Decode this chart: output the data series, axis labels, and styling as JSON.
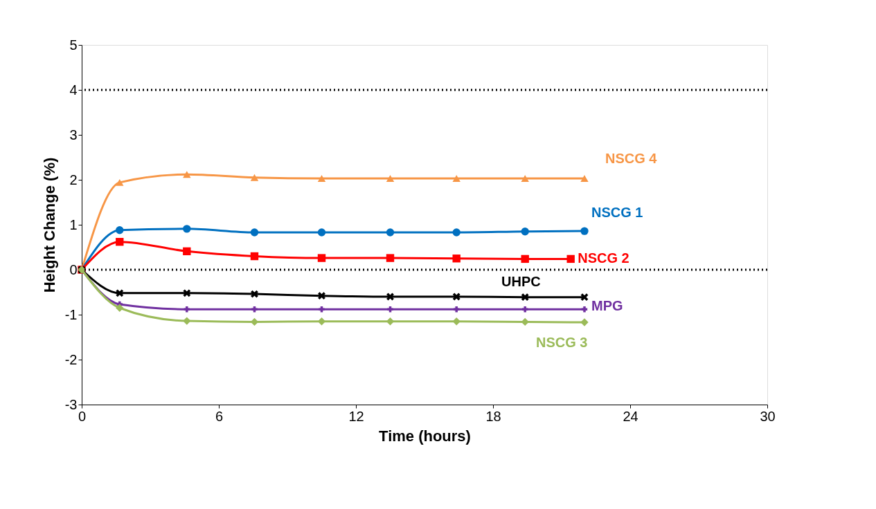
{
  "chart_data": {
    "type": "line",
    "xlabel": "Time (hours)",
    "ylabel": "Height Change (%)",
    "x": [
      0,
      1.66,
      4.6,
      7.56,
      10.5,
      13.5,
      16.4,
      19.4,
      22.0
    ],
    "xlim": [
      0,
      30
    ],
    "xticks": [
      0,
      6,
      12,
      18,
      24,
      30
    ],
    "ylim": [
      -3,
      5
    ],
    "yticks": [
      -3,
      -2,
      -1,
      0,
      1,
      2,
      3,
      4,
      5
    ],
    "grid": false,
    "line_style": "solid",
    "ref_lines": [
      {
        "axis": "y",
        "value": 4,
        "line_style": "dotted",
        "color": "#000000"
      },
      {
        "axis": "y",
        "value": 0,
        "line_style": "dotted",
        "color": "#000000"
      }
    ],
    "series": [
      {
        "name": "NSCG 4",
        "color": "#f79646",
        "marker": "triangle",
        "values": [
          0,
          1.94,
          2.12,
          2.05,
          2.03,
          2.03,
          2.03,
          2.03,
          2.03
        ]
      },
      {
        "name": "NSCG 1",
        "color": "#0070c0",
        "marker": "circle",
        "values": [
          0,
          0.88,
          0.91,
          0.83,
          0.83,
          0.83,
          0.83,
          0.85,
          0.86
        ]
      },
      {
        "name": "NSCG 2",
        "color": "#ff0000",
        "marker": "square",
        "x": [
          0,
          1.66,
          4.6,
          7.56,
          10.5,
          13.5,
          16.4,
          19.4,
          21.4
        ],
        "values": [
          0,
          0.62,
          0.41,
          0.3,
          0.26,
          0.26,
          0.25,
          0.24,
          0.24
        ]
      },
      {
        "name": "UHPC",
        "color": "#000000",
        "marker": "cross",
        "values": [
          0,
          -0.52,
          -0.52,
          -0.54,
          -0.58,
          -0.6,
          -0.6,
          -0.61,
          -0.61
        ]
      },
      {
        "name": "MPG",
        "color": "#7030a0",
        "marker": "plus",
        "values": [
          0,
          -0.77,
          -0.88,
          -0.88,
          -0.88,
          -0.88,
          -0.88,
          -0.88,
          -0.88
        ]
      },
      {
        "name": "NSCG 3",
        "color": "#9bbb59",
        "marker": "diamond",
        "values": [
          0,
          -0.85,
          -1.14,
          -1.16,
          -1.15,
          -1.15,
          -1.15,
          -1.16,
          -1.17
        ]
      }
    ]
  }
}
